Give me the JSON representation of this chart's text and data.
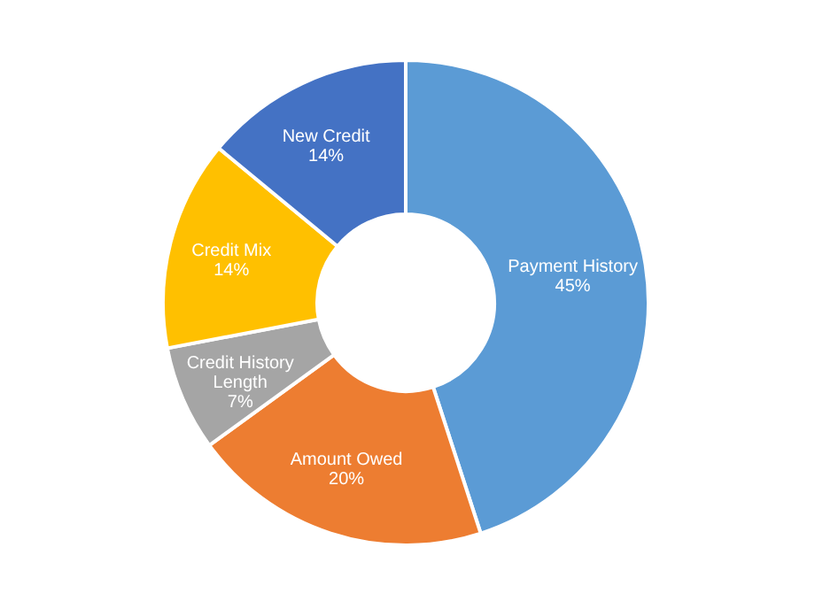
{
  "chart_data": {
    "type": "donut",
    "categories": [
      "Payment History",
      "Amount Owed",
      "Credit History Length",
      "Credit Mix",
      "New Credit"
    ],
    "values": [
      45,
      20,
      7,
      14,
      14
    ],
    "colors": [
      "#5b9bd5",
      "#ed7d31",
      "#a5a5a5",
      "#ffc000",
      "#4472c4"
    ],
    "value_labels": [
      "45%",
      "20%",
      "7%",
      "14%",
      "14%"
    ]
  }
}
